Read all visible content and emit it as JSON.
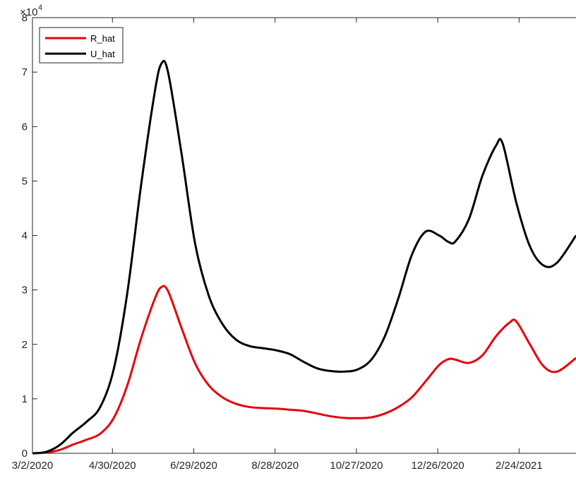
{
  "chart_data": {
    "type": "line",
    "title": "",
    "xlabel": "",
    "ylabel": "",
    "x_ticks": [
      "3/2/2020",
      "4/30/2020",
      "6/29/2020",
      "8/28/2020",
      "10/27/2020",
      "12/26/2020",
      "2/24/2021"
    ],
    "x_range": [
      "2020-03-02",
      "2021-04-07"
    ],
    "y_ticks": [
      "0",
      "1",
      "2",
      "3",
      "4",
      "5",
      "6",
      "7",
      "8"
    ],
    "y_multiplier_base": "×10",
    "y_multiplier_exp": "4",
    "ylim": [
      0,
      80000
    ],
    "grid": false,
    "legend_location": "top-left",
    "series": [
      {
        "name": "R_hat",
        "color": "#e8000b",
        "points": [
          [
            "2020-03-02",
            0
          ],
          [
            "2020-03-12",
            120
          ],
          [
            "2020-03-22",
            600
          ],
          [
            "2020-04-01",
            1600
          ],
          [
            "2020-04-11",
            2500
          ],
          [
            "2020-04-21",
            3600
          ],
          [
            "2020-05-01",
            6500
          ],
          [
            "2020-05-11",
            12500
          ],
          [
            "2020-05-21",
            21000
          ],
          [
            "2020-05-31",
            28200
          ],
          [
            "2020-06-05",
            30500
          ],
          [
            "2020-06-10",
            29800
          ],
          [
            "2020-06-20",
            23000
          ],
          [
            "2020-06-30",
            16500
          ],
          [
            "2020-07-10",
            12500
          ],
          [
            "2020-07-20",
            10300
          ],
          [
            "2020-07-30",
            9100
          ],
          [
            "2020-08-09",
            8500
          ],
          [
            "2020-08-19",
            8300
          ],
          [
            "2020-08-29",
            8200
          ],
          [
            "2020-09-08",
            8000
          ],
          [
            "2020-09-18",
            7800
          ],
          [
            "2020-09-28",
            7300
          ],
          [
            "2020-10-08",
            6800
          ],
          [
            "2020-10-18",
            6500
          ],
          [
            "2020-10-28",
            6450
          ],
          [
            "2020-11-07",
            6600
          ],
          [
            "2020-11-17",
            7300
          ],
          [
            "2020-11-27",
            8500
          ],
          [
            "2020-12-07",
            10300
          ],
          [
            "2020-12-17",
            13200
          ],
          [
            "2020-12-27",
            16200
          ],
          [
            "2021-01-03",
            17300
          ],
          [
            "2021-01-08",
            17200
          ],
          [
            "2021-01-18",
            16600
          ],
          [
            "2021-01-28",
            18000
          ],
          [
            "2021-02-07",
            21500
          ],
          [
            "2021-02-17",
            24000
          ],
          [
            "2021-02-22",
            24200
          ],
          [
            "2021-03-04",
            20000
          ],
          [
            "2021-03-14",
            16000
          ],
          [
            "2021-03-24",
            15000
          ],
          [
            "2021-04-07",
            17500
          ]
        ]
      },
      {
        "name": "U_hat",
        "color": "#000000",
        "points": [
          [
            "2020-03-02",
            0
          ],
          [
            "2020-03-12",
            250
          ],
          [
            "2020-03-22",
            1500
          ],
          [
            "2020-04-01",
            3800
          ],
          [
            "2020-04-11",
            5800
          ],
          [
            "2020-04-21",
            8500
          ],
          [
            "2020-05-01",
            15500
          ],
          [
            "2020-05-11",
            29500
          ],
          [
            "2020-05-21",
            49000
          ],
          [
            "2020-05-31",
            66000
          ],
          [
            "2020-06-05",
            71500
          ],
          [
            "2020-06-10",
            70000
          ],
          [
            "2020-06-20",
            55000
          ],
          [
            "2020-06-30",
            38500
          ],
          [
            "2020-07-10",
            29000
          ],
          [
            "2020-07-20",
            23800
          ],
          [
            "2020-07-30",
            20900
          ],
          [
            "2020-08-09",
            19700
          ],
          [
            "2020-08-19",
            19300
          ],
          [
            "2020-08-29",
            18900
          ],
          [
            "2020-09-08",
            18200
          ],
          [
            "2020-09-18",
            16800
          ],
          [
            "2020-09-28",
            15600
          ],
          [
            "2020-10-08",
            15100
          ],
          [
            "2020-10-18",
            15000
          ],
          [
            "2020-10-28",
            15400
          ],
          [
            "2020-11-07",
            17200
          ],
          [
            "2020-11-17",
            21500
          ],
          [
            "2020-11-27",
            28500
          ],
          [
            "2020-12-07",
            36500
          ],
          [
            "2020-12-17",
            40700
          ],
          [
            "2020-12-27",
            40000
          ],
          [
            "2021-01-03",
            38800
          ],
          [
            "2021-01-08",
            38900
          ],
          [
            "2021-01-18",
            43000
          ],
          [
            "2021-01-28",
            51000
          ],
          [
            "2021-02-07",
            56500
          ],
          [
            "2021-02-12",
            56800
          ],
          [
            "2021-02-22",
            46000
          ],
          [
            "2021-03-04",
            38000
          ],
          [
            "2021-03-14",
            34500
          ],
          [
            "2021-03-24",
            35000
          ],
          [
            "2021-04-07",
            40000
          ]
        ]
      }
    ]
  }
}
